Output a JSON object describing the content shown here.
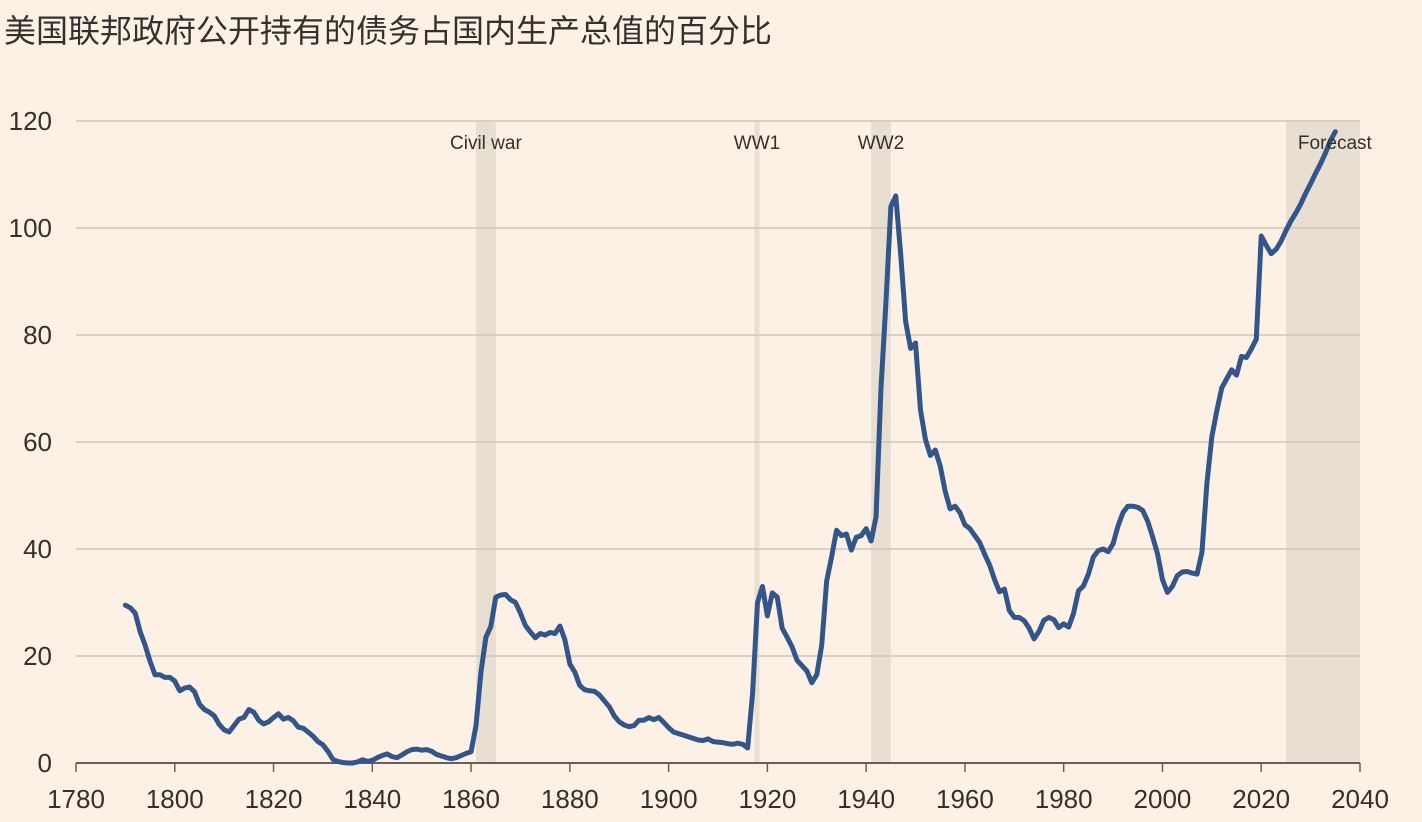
{
  "chart_data": {
    "type": "line",
    "title": "美国联邦政府公开持有的债务占国内生产总值的百分比",
    "xlabel": "",
    "ylabel": "",
    "xlim": [
      1780,
      2040
    ],
    "ylim": [
      0,
      120
    ],
    "x_ticks": [
      1780,
      1800,
      1820,
      1840,
      1860,
      1880,
      1900,
      1920,
      1940,
      1960,
      1980,
      2000,
      2020,
      2040
    ],
    "y_ticks": [
      0,
      20,
      40,
      60,
      80,
      100,
      120
    ],
    "grid": "horizontal",
    "shaded_periods": [
      {
        "label": "Civil war",
        "start": 1861,
        "end": 1865
      },
      {
        "label": "WW1",
        "start": 1917.4,
        "end": 1918.4
      },
      {
        "label": "WW2",
        "start": 1941,
        "end": 1945
      },
      {
        "label": "Forecast",
        "start": 2025,
        "end": 2040
      }
    ],
    "series": [
      {
        "name": "",
        "color": "#33568A",
        "points": [
          [
            1790,
            29.5
          ],
          [
            1791,
            29
          ],
          [
            1792,
            28
          ],
          [
            1793,
            24.5
          ],
          [
            1794,
            22
          ],
          [
            1795,
            19
          ],
          [
            1796,
            16.5
          ],
          [
            1797,
            16.5
          ],
          [
            1798,
            16
          ],
          [
            1799,
            16
          ],
          [
            1800,
            15.3
          ],
          [
            1801,
            13.5
          ],
          [
            1802,
            14
          ],
          [
            1803,
            14.2
          ],
          [
            1804,
            13.3
          ],
          [
            1805,
            11
          ],
          [
            1806,
            10
          ],
          [
            1807,
            9.5
          ],
          [
            1808,
            8.8
          ],
          [
            1809,
            7.2
          ],
          [
            1810,
            6.2
          ],
          [
            1811,
            5.8
          ],
          [
            1812,
            7
          ],
          [
            1813,
            8.2
          ],
          [
            1814,
            8.5
          ],
          [
            1815,
            10
          ],
          [
            1816,
            9.5
          ],
          [
            1817,
            8
          ],
          [
            1818,
            7.3
          ],
          [
            1819,
            7.7
          ],
          [
            1820,
            8.5
          ],
          [
            1821,
            9.2
          ],
          [
            1822,
            8.2
          ],
          [
            1823,
            8.5
          ],
          [
            1824,
            7.9
          ],
          [
            1825,
            6.7
          ],
          [
            1826,
            6.5
          ],
          [
            1827,
            5.8
          ],
          [
            1828,
            5
          ],
          [
            1829,
            4
          ],
          [
            1830,
            3.4
          ],
          [
            1831,
            2.2
          ],
          [
            1832,
            0.7
          ],
          [
            1833,
            0.3
          ],
          [
            1834,
            0.1
          ],
          [
            1835,
            0
          ],
          [
            1836,
            0
          ],
          [
            1837,
            0.2
          ],
          [
            1838,
            0.6
          ],
          [
            1839,
            0.3
          ],
          [
            1840,
            0.5
          ],
          [
            1841,
            1
          ],
          [
            1842,
            1.4
          ],
          [
            1843,
            1.7
          ],
          [
            1844,
            1.2
          ],
          [
            1845,
            1
          ],
          [
            1846,
            1.5
          ],
          [
            1847,
            2.1
          ],
          [
            1848,
            2.5
          ],
          [
            1849,
            2.6
          ],
          [
            1850,
            2.4
          ],
          [
            1851,
            2.5
          ],
          [
            1852,
            2.2
          ],
          [
            1853,
            1.6
          ],
          [
            1854,
            1.3
          ],
          [
            1855,
            1
          ],
          [
            1856,
            0.8
          ],
          [
            1857,
            1
          ],
          [
            1858,
            1.4
          ],
          [
            1859,
            1.8
          ],
          [
            1860,
            2.1
          ],
          [
            1861,
            7
          ],
          [
            1862,
            17
          ],
          [
            1863,
            23.5
          ],
          [
            1864,
            25.5
          ],
          [
            1865,
            31
          ],
          [
            1866,
            31.4
          ],
          [
            1867,
            31.5
          ],
          [
            1868,
            30.5
          ],
          [
            1869,
            30
          ],
          [
            1870,
            28
          ],
          [
            1871,
            25.7
          ],
          [
            1872,
            24.5
          ],
          [
            1873,
            23.4
          ],
          [
            1874,
            24.2
          ],
          [
            1875,
            23.9
          ],
          [
            1876,
            24.4
          ],
          [
            1877,
            24.2
          ],
          [
            1878,
            25.6
          ],
          [
            1879,
            23
          ],
          [
            1880,
            18.5
          ],
          [
            1881,
            17
          ],
          [
            1882,
            14.5
          ],
          [
            1883,
            13.7
          ],
          [
            1884,
            13.5
          ],
          [
            1885,
            13.4
          ],
          [
            1886,
            12.7
          ],
          [
            1887,
            11.6
          ],
          [
            1888,
            10.5
          ],
          [
            1889,
            8.8
          ],
          [
            1890,
            7.7
          ],
          [
            1891,
            7.1
          ],
          [
            1892,
            6.8
          ],
          [
            1893,
            7
          ],
          [
            1894,
            8
          ],
          [
            1895,
            8
          ],
          [
            1896,
            8.5
          ],
          [
            1897,
            8.1
          ],
          [
            1898,
            8.5
          ],
          [
            1899,
            7.6
          ],
          [
            1900,
            6.6
          ],
          [
            1901,
            5.8
          ],
          [
            1902,
            5.5
          ],
          [
            1903,
            5.2
          ],
          [
            1904,
            4.9
          ],
          [
            1905,
            4.6
          ],
          [
            1906,
            4.3
          ],
          [
            1907,
            4.2
          ],
          [
            1908,
            4.5
          ],
          [
            1909,
            4
          ],
          [
            1910,
            3.9
          ],
          [
            1911,
            3.8
          ],
          [
            1912,
            3.6
          ],
          [
            1913,
            3.5
          ],
          [
            1914,
            3.7
          ],
          [
            1915,
            3.5
          ],
          [
            1916,
            2.8
          ],
          [
            1917,
            13
          ],
          [
            1918,
            30
          ],
          [
            1919,
            33
          ],
          [
            1920,
            27.5
          ],
          [
            1921,
            31.8
          ],
          [
            1922,
            31
          ],
          [
            1923,
            25.2
          ],
          [
            1924,
            23.5
          ],
          [
            1925,
            21.7
          ],
          [
            1926,
            19.2
          ],
          [
            1927,
            18.2
          ],
          [
            1928,
            17.2
          ],
          [
            1929,
            15
          ],
          [
            1930,
            16.5
          ],
          [
            1931,
            22
          ],
          [
            1932,
            34
          ],
          [
            1933,
            38.5
          ],
          [
            1934,
            43.5
          ],
          [
            1935,
            42.5
          ],
          [
            1936,
            42.8
          ],
          [
            1937,
            39.8
          ],
          [
            1938,
            42.2
          ],
          [
            1939,
            42.5
          ],
          [
            1940,
            43.8
          ],
          [
            1941,
            41.5
          ],
          [
            1942,
            46
          ],
          [
            1943,
            70
          ],
          [
            1944,
            86
          ],
          [
            1945,
            104
          ],
          [
            1946,
            106
          ],
          [
            1947,
            95
          ],
          [
            1948,
            82.5
          ],
          [
            1949,
            77.5
          ],
          [
            1950,
            78.5
          ],
          [
            1951,
            66
          ],
          [
            1952,
            60.5
          ],
          [
            1953,
            57.5
          ],
          [
            1954,
            58.5
          ],
          [
            1955,
            55.5
          ],
          [
            1956,
            50.8
          ],
          [
            1957,
            47.5
          ],
          [
            1958,
            48
          ],
          [
            1959,
            46.8
          ],
          [
            1960,
            44.5
          ],
          [
            1961,
            43.8
          ],
          [
            1962,
            42.5
          ],
          [
            1963,
            41.2
          ],
          [
            1964,
            39
          ],
          [
            1965,
            37
          ],
          [
            1966,
            34.3
          ],
          [
            1967,
            32
          ],
          [
            1968,
            32.5
          ],
          [
            1969,
            28.5
          ],
          [
            1970,
            27.2
          ],
          [
            1971,
            27.2
          ],
          [
            1972,
            26.6
          ],
          [
            1973,
            25.2
          ],
          [
            1974,
            23.2
          ],
          [
            1975,
            24.6
          ],
          [
            1976,
            26.7
          ],
          [
            1977,
            27.2
          ],
          [
            1978,
            26.8
          ],
          [
            1979,
            25.3
          ],
          [
            1980,
            26
          ],
          [
            1981,
            25.4
          ],
          [
            1982,
            28
          ],
          [
            1983,
            32.2
          ],
          [
            1984,
            33.1
          ],
          [
            1985,
            35.3
          ],
          [
            1986,
            38.5
          ],
          [
            1987,
            39.7
          ],
          [
            1988,
            40
          ],
          [
            1989,
            39.5
          ],
          [
            1990,
            41
          ],
          [
            1991,
            44.3
          ],
          [
            1992,
            46.8
          ],
          [
            1993,
            48
          ],
          [
            1994,
            48
          ],
          [
            1995,
            47.8
          ],
          [
            1996,
            47.2
          ],
          [
            1997,
            45.2
          ],
          [
            1998,
            42.3
          ],
          [
            1999,
            39.1
          ],
          [
            2000,
            34.3
          ],
          [
            2001,
            31.9
          ],
          [
            2002,
            33
          ],
          [
            2003,
            35
          ],
          [
            2004,
            35.7
          ],
          [
            2005,
            35.8
          ],
          [
            2006,
            35.5
          ],
          [
            2007,
            35.3
          ],
          [
            2008,
            39.4
          ],
          [
            2009,
            52.3
          ],
          [
            2010,
            61
          ],
          [
            2011,
            65.8
          ],
          [
            2012,
            70.1
          ],
          [
            2013,
            71.8
          ],
          [
            2014,
            73.5
          ],
          [
            2015,
            72.5
          ],
          [
            2016,
            76
          ],
          [
            2017,
            75.8
          ],
          [
            2018,
            77.4
          ],
          [
            2019,
            79.2
          ],
          [
            2020,
            98.5
          ],
          [
            2021,
            96.8
          ],
          [
            2022,
            95.2
          ],
          [
            2023,
            96
          ],
          [
            2024,
            97.5
          ],
          [
            2025,
            99.5
          ],
          [
            2026,
            101.3
          ],
          [
            2027,
            102.8
          ],
          [
            2028,
            104.5
          ],
          [
            2029,
            106.5
          ],
          [
            2030,
            108.3
          ],
          [
            2031,
            110.2
          ],
          [
            2032,
            112
          ],
          [
            2033,
            114
          ],
          [
            2034,
            116.3
          ],
          [
            2035,
            118
          ]
        ]
      }
    ]
  }
}
